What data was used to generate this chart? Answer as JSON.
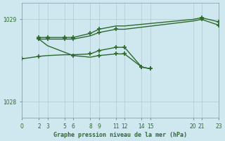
{
  "background_color": "#cfe8f0",
  "grid_color": "#b0c8d0",
  "line_color": "#2d6a2d",
  "title": "Graphe pression niveau de la mer (hPa)",
  "xlim": [
    0,
    23
  ],
  "ylim": [
    1027.8,
    1029.2
  ],
  "yticks": [
    1028,
    1029
  ],
  "xticks": [
    0,
    2,
    3,
    5,
    6,
    8,
    9,
    11,
    12,
    14,
    15,
    20,
    21,
    23
  ],
  "series": [
    {
      "x": [
        2,
        3,
        5,
        6,
        8,
        9,
        11,
        12,
        20,
        21,
        23
      ],
      "y": [
        1028.78,
        1028.78,
        1028.78,
        1028.78,
        1028.83,
        1028.88,
        1028.92,
        1028.92,
        1029.0,
        1029.02,
        1028.97
      ],
      "marker_indices": [
        0,
        1,
        2,
        3,
        4,
        5,
        9,
        10
      ]
    },
    {
      "x": [
        2,
        3,
        5,
        6,
        8,
        9,
        11,
        12,
        20,
        21,
        23
      ],
      "y": [
        1028.76,
        1028.76,
        1028.76,
        1028.76,
        1028.8,
        1028.84,
        1028.88,
        1028.88,
        1028.98,
        1029.0,
        1028.93
      ],
      "marker_indices": [
        0,
        1,
        2,
        3,
        5,
        6,
        9,
        10
      ]
    },
    {
      "x": [
        2,
        3,
        5,
        6,
        8,
        9,
        11,
        12,
        14,
        15
      ],
      "y": [
        1028.76,
        1028.68,
        1028.6,
        1028.56,
        1028.54,
        1028.56,
        1028.58,
        1028.58,
        1028.42,
        1028.4
      ],
      "marker_indices": [
        0,
        3,
        5,
        6,
        7,
        8,
        9
      ]
    },
    {
      "x": [
        0,
        2,
        3,
        5,
        6,
        8,
        9,
        11,
        12,
        14,
        15
      ],
      "y": [
        1028.52,
        1028.55,
        1028.56,
        1028.57,
        1028.57,
        1028.58,
        1028.62,
        1028.66,
        1028.66,
        1028.42,
        1028.4
      ],
      "marker_indices": [
        0,
        1,
        5,
        6,
        7,
        8,
        9,
        10
      ]
    }
  ]
}
